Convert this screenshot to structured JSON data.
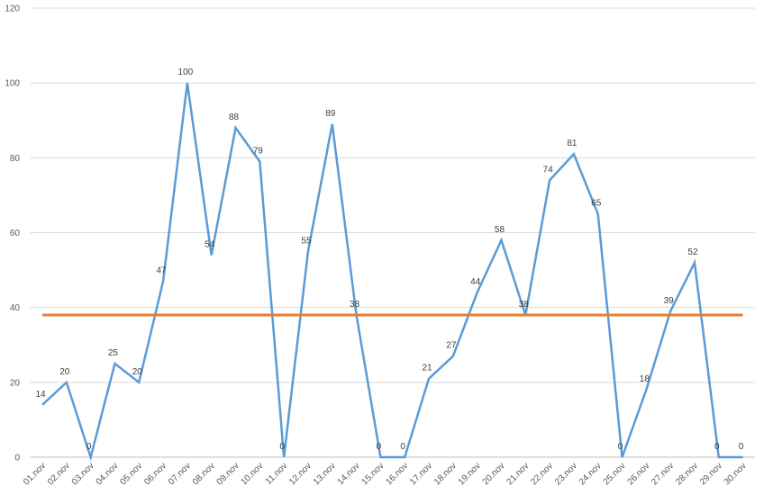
{
  "chart_data": {
    "type": "line",
    "categories": [
      "01.nov",
      "02.nov",
      "03.nov",
      "04.nov",
      "05.nov",
      "06.nov",
      "07.nov",
      "08.nov",
      "09.nov",
      "10.nov",
      "11.nov",
      "12.nov",
      "13.nov",
      "14.nov",
      "15.nov",
      "16.nov",
      "17.nov",
      "18.nov",
      "19.nov",
      "20.nov",
      "21.nov",
      "22.nov",
      "23.nov",
      "24.nov",
      "25.nov",
      "26.nov",
      "27.nov",
      "28.nov",
      "29.nov",
      "30.nov"
    ],
    "series": [
      {
        "color": "#5b9bd5",
        "data_labels": true,
        "values": [
          14,
          20,
          0,
          25,
          20,
          47,
          100,
          54,
          88,
          79,
          0,
          55,
          89,
          38,
          0,
          0,
          21,
          27,
          44,
          58,
          38,
          74,
          81,
          65,
          0,
          18,
          39,
          52,
          0,
          0
        ]
      },
      {
        "color": "#ed7d31",
        "data_labels": false,
        "values": [
          38,
          38,
          38,
          38,
          38,
          38,
          38,
          38,
          38,
          38,
          38,
          38,
          38,
          38,
          38,
          38,
          38,
          38,
          38,
          38,
          38,
          38,
          38,
          38,
          38,
          38,
          38,
          38,
          38,
          38
        ]
      }
    ],
    "ylim": [
      0,
      120
    ],
    "yticks": [
      0,
      20,
      40,
      60,
      80,
      100,
      120
    ],
    "grid": true
  }
}
